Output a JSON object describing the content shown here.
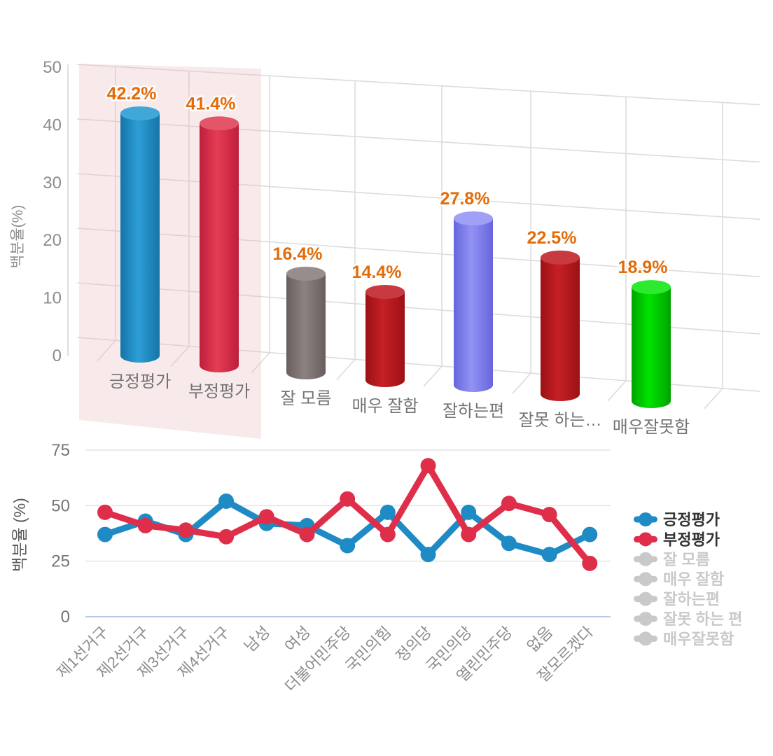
{
  "chart_data": [
    {
      "type": "bar",
      "subtype": "3d-cylinder",
      "title": "",
      "ylabel": "백분율(%)",
      "ylim": [
        0,
        50
      ],
      "yticks": [
        0,
        10,
        20,
        30,
        40,
        50
      ],
      "grid": true,
      "categories": [
        "긍정평가",
        "부정평가",
        "잘 모름",
        "매우 잘함",
        "잘하는편",
        "잘못 하는…",
        "매우잘못함"
      ],
      "values": [
        42.2,
        41.4,
        16.4,
        14.4,
        27.8,
        22.5,
        18.9
      ],
      "value_labels": [
        "42.2%",
        "41.4%",
        "16.4%",
        "14.4%",
        "27.8%",
        "22.5%",
        "18.9%"
      ],
      "bar_colors": [
        {
          "edge": "#1474A8",
          "body": "#2D9FD6",
          "cap": "#41A7D8"
        },
        {
          "edge": "#BE1E39",
          "body": "#E63C55",
          "cap": "#E4556A"
        },
        {
          "edge": "#685E5E",
          "body": "#8C8282",
          "cap": "#978D8D"
        },
        {
          "edge": "#9C1115",
          "body": "#C52026",
          "cap": "#C73A40"
        },
        {
          "edge": "#6666DC",
          "body": "#9292F4",
          "cap": "#A0A0F6"
        },
        {
          "edge": "#9C1115",
          "body": "#C52026",
          "cap": "#C73A40"
        },
        {
          "edge": "#00A300",
          "body": "#00E400",
          "cap": "#2EEA2E"
        }
      ],
      "value_label_color": "#E36C0A",
      "tick_text_color": "#8C8C8C",
      "category_text_color": "#737373",
      "grid_color": "#DCDCDC",
      "highlight": {
        "over_categories": [
          "긍정평가",
          "부정평가"
        ],
        "color": "#E8BEBE",
        "opacity": 0.32
      }
    },
    {
      "type": "line",
      "title": "",
      "ylabel": "백분율 (%)",
      "ylim": [
        0,
        75
      ],
      "yticks": [
        0,
        25,
        50,
        75
      ],
      "grid": true,
      "legend_position": "right",
      "categories": [
        "제1선거구",
        "제2선거구",
        "제3선거구",
        "제4선거구",
        "남성",
        "여성",
        "더불어민주당",
        "국민의힘",
        "정의당",
        "국민의당",
        "열린민주당",
        "없음",
        "잘모르겠다"
      ],
      "series": [
        {
          "name": "긍정평가",
          "active": true,
          "color": "#1E8BC4",
          "values": [
            37,
            43,
            37,
            52,
            42,
            41,
            32,
            47,
            28,
            47,
            33,
            28,
            37
          ]
        },
        {
          "name": "부정평가",
          "active": true,
          "color": "#DF2E49",
          "values": [
            47,
            41,
            39,
            36,
            45,
            37,
            53,
            37,
            68,
            37,
            51,
            46,
            24
          ]
        },
        {
          "name": "잘 모름",
          "active": false
        },
        {
          "name": "매우 잘함",
          "active": false
        },
        {
          "name": "잘하는편",
          "active": false
        },
        {
          "name": "잘못 하는 편",
          "active": false
        },
        {
          "name": "매우잘못함",
          "active": false
        }
      ],
      "inactive_color": "#C9C9C9",
      "legend_active_text_color": "#333333",
      "tick_text_color": "#757575",
      "axis_label_color": "#595959",
      "x_label_color": "#8C8C8C",
      "grid_color": "#E4E4E4",
      "zero_line_color": "#B9C7E9"
    }
  ]
}
